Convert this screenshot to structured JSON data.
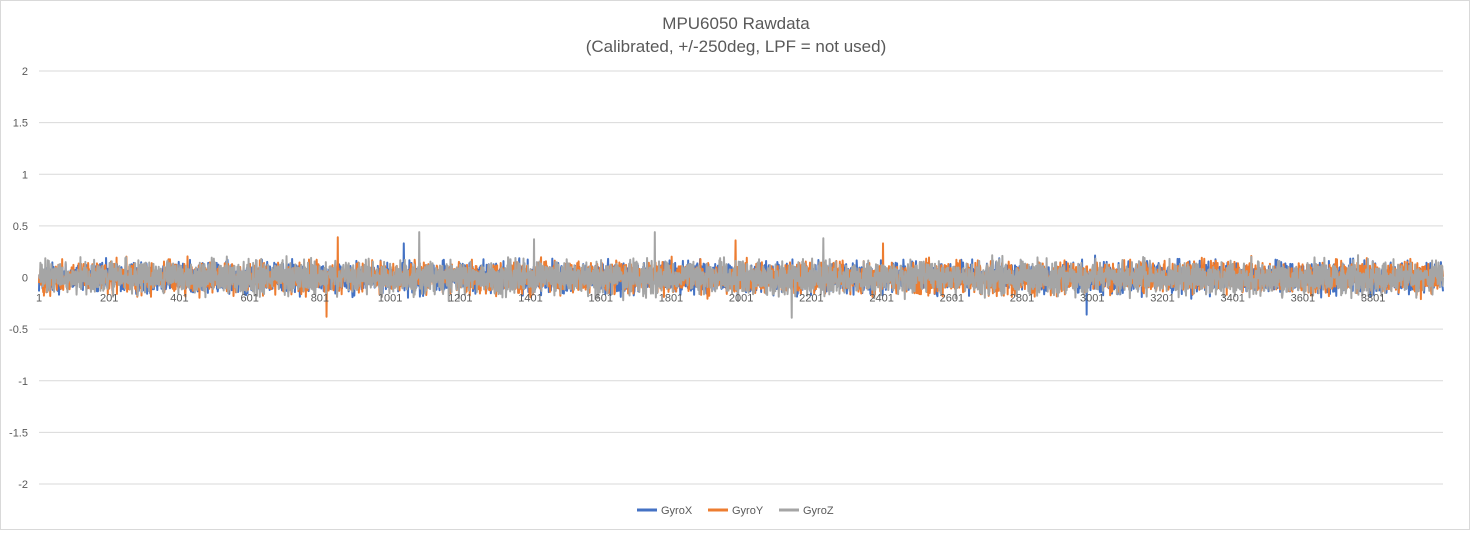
{
  "chart_data": {
    "type": "line",
    "title": "MPU6050 Rawdata",
    "subtitle": "(Calibrated, +/-250deg, LPF = not used)",
    "xlabel": "",
    "ylabel": "",
    "ylim": [
      -2,
      2
    ],
    "yticks": [
      2,
      1.5,
      1,
      0.5,
      0,
      -0.5,
      -1,
      -1.5,
      -2
    ],
    "ytick_labels": [
      "2",
      "1.5",
      "1",
      "0.5",
      "0",
      "-0.5",
      "-1",
      "-1.5",
      "-2"
    ],
    "xlim": [
      1,
      4000
    ],
    "xticks": [
      1,
      201,
      401,
      601,
      801,
      1001,
      1201,
      1401,
      1601,
      1801,
      2001,
      2201,
      2401,
      2601,
      2801,
      3001,
      3201,
      3401,
      3601,
      3801
    ],
    "xtick_labels": [
      "1",
      "201",
      "401",
      "601",
      "801",
      "1001",
      "1201",
      "1401",
      "1601",
      "1801",
      "2001",
      "2201",
      "2401",
      "2601",
      "2801",
      "3001",
      "3201",
      "3401",
      "3601",
      "3801"
    ],
    "grid": true,
    "legend_position": "bottom",
    "sample_count": 4000,
    "series": [
      {
        "name": "GyroX",
        "color": "#4472c4",
        "mean": 0,
        "amplitude": 0.22,
        "peaks": [
          [
            1040,
            0.33
          ],
          [
            2985,
            -0.36
          ]
        ]
      },
      {
        "name": "GyroY",
        "color": "#ed7d31",
        "mean": 0,
        "amplitude": 0.22,
        "peaks": [
          [
            852,
            0.39
          ],
          [
            820,
            -0.38
          ],
          [
            1985,
            0.36
          ],
          [
            2405,
            0.33
          ]
        ]
      },
      {
        "name": "GyroZ",
        "color": "#a5a5a5",
        "mean": 0,
        "amplitude": 0.24,
        "peaks": [
          [
            1084,
            0.44
          ],
          [
            1411,
            0.37
          ],
          [
            1755,
            0.44
          ],
          [
            2145,
            -0.39
          ],
          [
            2235,
            0.38
          ]
        ]
      }
    ]
  }
}
